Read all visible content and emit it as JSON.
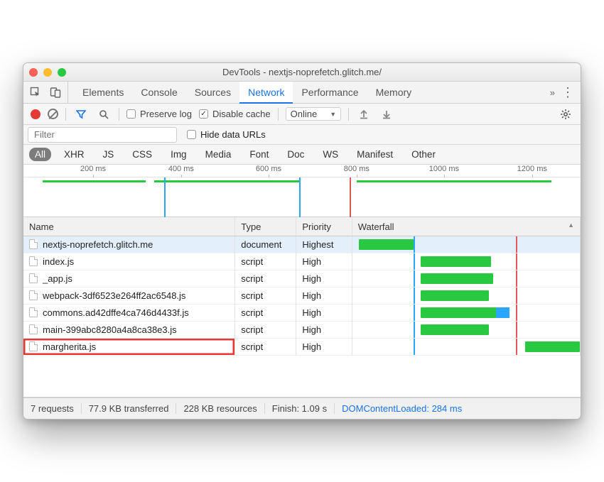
{
  "colors": {
    "traffic_red": "#ff5f57",
    "traffic_yellow": "#febc2e",
    "traffic_green": "#28c940",
    "accent_blue": "#1a73e8",
    "bar_green": "#28c940",
    "bar_blue": "#2aa6ff",
    "vline_blue": "#2aa6ff",
    "vline_red": "#e05a5a",
    "highlight_red": "#e53935",
    "row_selected": "#e3f0fb"
  },
  "window": {
    "title": "DevTools - nextjs-noprefetch.glitch.me/"
  },
  "tabs": {
    "items": [
      "Elements",
      "Console",
      "Sources",
      "Network",
      "Performance",
      "Memory"
    ],
    "active_index": 3,
    "overflow_glyph": "»"
  },
  "toolbar": {
    "preserve_log": {
      "label": "Preserve log",
      "checked": false
    },
    "disable_cache": {
      "label": "Disable cache",
      "checked": true
    },
    "throttle": {
      "label": "Online"
    }
  },
  "filter": {
    "placeholder": "Filter",
    "hide_data_urls": {
      "label": "Hide data URLs",
      "checked": false
    }
  },
  "types": {
    "items": [
      "All",
      "XHR",
      "JS",
      "CSS",
      "Img",
      "Media",
      "Font",
      "Doc",
      "WS",
      "Manifest",
      "Other"
    ],
    "active_index": 0
  },
  "timeline": {
    "ticks": [
      {
        "label": "200 ms",
        "pct": 12.5
      },
      {
        "label": "400 ms",
        "pct": 28.3
      },
      {
        "label": "600 ms",
        "pct": 44.0
      },
      {
        "label": "800 ms",
        "pct": 59.8
      },
      {
        "label": "1000 ms",
        "pct": 75.5
      },
      {
        "label": "1200 ms",
        "pct": 91.3
      }
    ],
    "bars": [
      {
        "left_pct": 3.5,
        "width_pct": 18.5,
        "color": "#28c940"
      },
      {
        "left_pct": 23.5,
        "width_pct": 26.0,
        "color": "#28c940"
      },
      {
        "left_pct": 59.8,
        "width_pct": 35.0,
        "color": "#28c940"
      }
    ],
    "vlines": [
      {
        "pct": 25.3,
        "color": "#2aa6ff"
      },
      {
        "pct": 49.5,
        "color": "#2aa6ff"
      },
      {
        "pct": 58.5,
        "color": "#e05a5a"
      }
    ]
  },
  "table": {
    "columns": [
      "Name",
      "Type",
      "Priority",
      "Waterfall"
    ],
    "col_widths_pct": [
      38,
      11,
      10,
      41
    ],
    "waterfall": {
      "domain_ms": [
        0,
        1300
      ],
      "vlines": [
        {
          "pct": 27.0,
          "color": "#2aa6ff"
        },
        {
          "pct": 72.0,
          "color": "#e05a5a"
        }
      ]
    },
    "rows": [
      {
        "name": "nextjs-noprefetch.glitch.me",
        "type": "document",
        "priority": "Highest",
        "selected": true,
        "bar": {
          "left_pct": 3,
          "width_pct": 24,
          "color": "#28c940"
        }
      },
      {
        "name": "index.js",
        "type": "script",
        "priority": "High",
        "bar": {
          "left_pct": 30,
          "width_pct": 31,
          "color": "#28c940"
        }
      },
      {
        "name": "_app.js",
        "type": "script",
        "priority": "High",
        "bar": {
          "left_pct": 30,
          "width_pct": 32,
          "color": "#28c940"
        }
      },
      {
        "name": "webpack-3df6523e264ff2ac6548.js",
        "type": "script",
        "priority": "High",
        "bar": {
          "left_pct": 30,
          "width_pct": 30,
          "color": "#28c940"
        }
      },
      {
        "name": "commons.ad42dffe4ca746d4433f.js",
        "type": "script",
        "priority": "High",
        "bar": {
          "left_pct": 30,
          "width_pct": 33,
          "color": "#28c940",
          "tip_pct": 6,
          "tip_color": "#2aa6ff"
        }
      },
      {
        "name": "main-399abc8280a4a8ca38e3.js",
        "type": "script",
        "priority": "High",
        "bar": {
          "left_pct": 30,
          "width_pct": 30,
          "color": "#28c940"
        }
      },
      {
        "name": "margherita.js",
        "type": "script",
        "priority": "High",
        "highlighted": true,
        "bar": {
          "left_pct": 76,
          "width_pct": 24,
          "color": "#28c940"
        }
      }
    ]
  },
  "status": {
    "requests": "7 requests",
    "transferred": "77.9 KB transferred",
    "resources": "228 KB resources",
    "finish": "Finish: 1.09 s",
    "dom": "DOMContentLoaded: 284 ms"
  }
}
